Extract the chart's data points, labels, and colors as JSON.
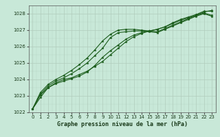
{
  "title": "Graphe pression niveau de la mer (hPa)",
  "bg_color": "#c8e8d8",
  "plot_bg_color": "#c8e8d8",
  "grid_color": "#b0ccbc",
  "line_color": "#1a5c1a",
  "xlim": [
    -0.5,
    23.5
  ],
  "ylim": [
    1022,
    1028.5
  ],
  "yticks": [
    1022,
    1023,
    1024,
    1025,
    1026,
    1027,
    1028
  ],
  "xticks": [
    0,
    1,
    2,
    3,
    4,
    5,
    6,
    7,
    8,
    9,
    10,
    11,
    12,
    13,
    14,
    15,
    16,
    17,
    18,
    19,
    20,
    21,
    22,
    23
  ],
  "xtick_labels": [
    "0",
    "1",
    "2",
    "3",
    "4",
    "5",
    "6",
    "7",
    "8",
    "9",
    "10",
    "11",
    "12",
    "13",
    "14",
    "15",
    "16",
    "17",
    "18",
    "19",
    "20",
    "21",
    "22",
    "23"
  ],
  "tick_fontsize": 5,
  "title_fontsize": 6,
  "marker_size": 2.5,
  "line_width": 0.8,
  "series": [
    [
      1022.2,
      1022.9,
      1023.5,
      1023.8,
      1024.0,
      1024.1,
      1024.3,
      1024.5,
      1024.8,
      1025.1,
      1025.5,
      1025.9,
      1026.3,
      1026.6,
      1026.8,
      1026.95,
      1027.05,
      1027.2,
      1027.4,
      1027.6,
      1027.75,
      1027.9,
      1028.1,
      1028.2
    ],
    [
      1022.2,
      1023.05,
      1023.5,
      1023.75,
      1023.9,
      1024.05,
      1024.2,
      1024.45,
      1024.85,
      1025.35,
      1025.75,
      1026.1,
      1026.45,
      1026.7,
      1026.85,
      1026.95,
      1027.05,
      1027.2,
      1027.45,
      1027.65,
      1027.8,
      1027.95,
      1028.15,
      1028.15
    ],
    [
      1022.2,
      1023.1,
      1023.6,
      1023.9,
      1024.1,
      1024.35,
      1024.65,
      1025.0,
      1025.45,
      1025.9,
      1026.55,
      1026.85,
      1026.9,
      1026.95,
      1026.95,
      1026.9,
      1026.85,
      1027.05,
      1027.25,
      1027.45,
      1027.65,
      1027.85,
      1028.0,
      1027.85
    ],
    [
      1022.2,
      1023.2,
      1023.7,
      1024.0,
      1024.25,
      1024.55,
      1024.9,
      1025.3,
      1025.8,
      1026.35,
      1026.75,
      1027.0,
      1027.05,
      1027.05,
      1027.0,
      1026.95,
      1026.9,
      1027.1,
      1027.3,
      1027.5,
      1027.7,
      1027.9,
      1028.05,
      1027.9
    ]
  ]
}
